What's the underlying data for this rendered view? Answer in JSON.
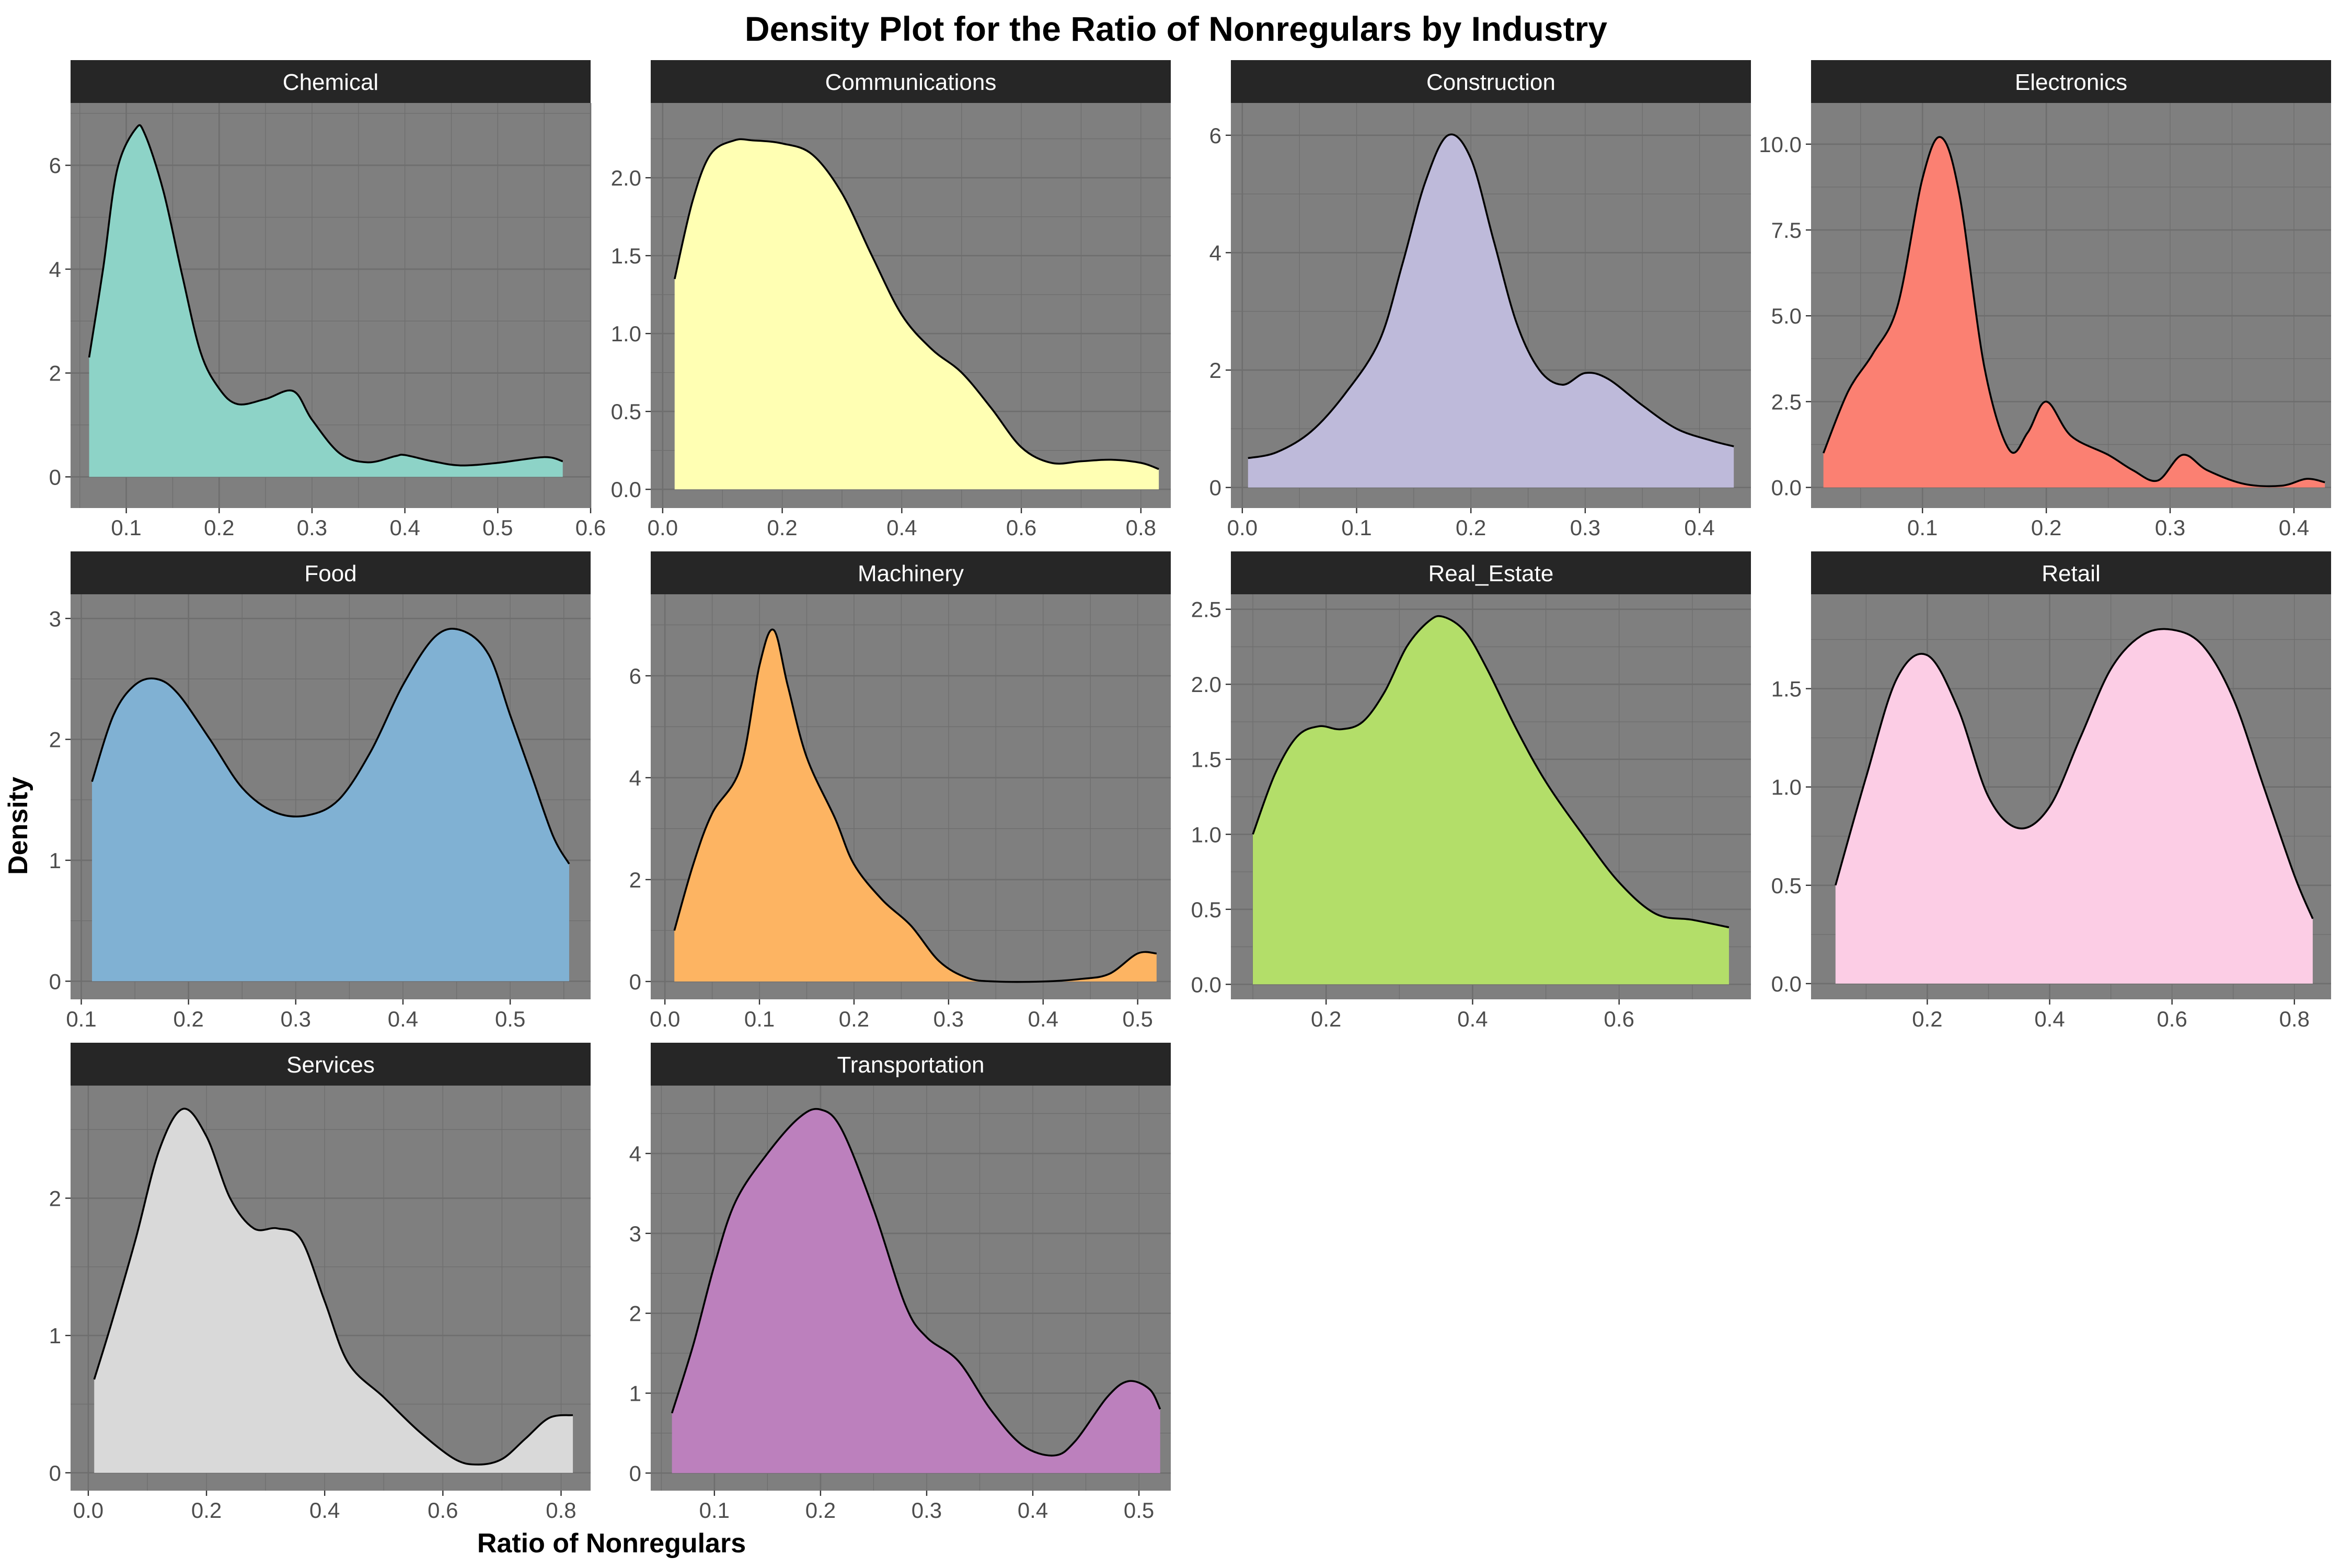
{
  "title": "Density Plot for the Ratio of Nonregulars by Industry",
  "x_axis_label": "Ratio of Nonregulars",
  "y_axis_label": "Density",
  "colors": {
    "panel_background": "#7f7f7f",
    "grid": "#6e6e6e",
    "strip_background": "#262626",
    "strip_text": "#ffffff",
    "outline": "#000000",
    "tick_text": "#4d4d4d"
  },
  "chart_data": [
    {
      "type": "area",
      "panel": "Chemical",
      "color": "#8dd3c7",
      "xlim": [
        0.04,
        0.6
      ],
      "ylim": [
        -0.6,
        7.2
      ],
      "x_ticks": [
        0.1,
        0.2,
        0.3,
        0.4,
        0.5,
        0.6
      ],
      "x_tick_labels": [
        "0.1",
        "0.2",
        "0.3",
        "0.4",
        "0.5",
        "0.6"
      ],
      "y_ticks": [
        0,
        2,
        4,
        6
      ],
      "y_tick_labels": [
        "0",
        "2",
        "4",
        "6"
      ],
      "x": [
        0.06,
        0.075,
        0.09,
        0.11,
        0.12,
        0.14,
        0.16,
        0.18,
        0.2,
        0.22,
        0.25,
        0.28,
        0.3,
        0.33,
        0.36,
        0.39,
        0.4,
        0.43,
        0.46,
        0.5,
        0.55,
        0.57
      ],
      "y": [
        2.3,
        4.0,
        5.9,
        6.7,
        6.6,
        5.5,
        3.9,
        2.4,
        1.7,
        1.4,
        1.5,
        1.65,
        1.1,
        0.45,
        0.28,
        0.4,
        0.42,
        0.3,
        0.22,
        0.27,
        0.38,
        0.3
      ]
    },
    {
      "type": "area",
      "panel": "Communications",
      "color": "#ffffb3",
      "xlim": [
        -0.02,
        0.85
      ],
      "ylim": [
        -0.12,
        2.48
      ],
      "x_ticks": [
        0.0,
        0.2,
        0.4,
        0.6,
        0.8
      ],
      "x_tick_labels": [
        "0.0",
        "0.2",
        "0.4",
        "0.6",
        "0.8"
      ],
      "y_ticks": [
        0.0,
        0.5,
        1.0,
        1.5,
        2.0
      ],
      "y_tick_labels": [
        "0.0",
        "0.5",
        "1.0",
        "1.5",
        "2.0"
      ],
      "x": [
        0.02,
        0.05,
        0.08,
        0.12,
        0.15,
        0.2,
        0.25,
        0.3,
        0.35,
        0.4,
        0.45,
        0.5,
        0.55,
        0.6,
        0.65,
        0.7,
        0.75,
        0.8,
        0.83
      ],
      "y": [
        1.35,
        1.85,
        2.15,
        2.24,
        2.24,
        2.22,
        2.15,
        1.9,
        1.5,
        1.12,
        0.9,
        0.75,
        0.52,
        0.27,
        0.17,
        0.18,
        0.19,
        0.17,
        0.13
      ]
    },
    {
      "type": "area",
      "panel": "Construction",
      "color": "#bebada",
      "xlim": [
        -0.01,
        0.445
      ],
      "ylim": [
        -0.35,
        6.55
      ],
      "x_ticks": [
        0.0,
        0.1,
        0.2,
        0.3,
        0.4
      ],
      "x_tick_labels": [
        "0.0",
        "0.1",
        "0.2",
        "0.3",
        "0.4"
      ],
      "y_ticks": [
        0,
        2,
        4,
        6
      ],
      "y_tick_labels": [
        "0",
        "2",
        "4",
        "6"
      ],
      "x": [
        0.005,
        0.03,
        0.06,
        0.09,
        0.12,
        0.14,
        0.16,
        0.18,
        0.2,
        0.22,
        0.24,
        0.26,
        0.28,
        0.3,
        0.32,
        0.35,
        0.38,
        0.41,
        0.43
      ],
      "y": [
        0.5,
        0.6,
        0.95,
        1.6,
        2.5,
        3.8,
        5.2,
        6.0,
        5.6,
        4.2,
        2.8,
        2.0,
        1.75,
        1.95,
        1.85,
        1.4,
        1.0,
        0.8,
        0.7
      ]
    },
    {
      "type": "area",
      "panel": "Electronics",
      "color": "#fb8072",
      "xlim": [
        0.01,
        0.43
      ],
      "ylim": [
        -0.6,
        11.2
      ],
      "x_ticks": [
        0.1,
        0.2,
        0.3,
        0.4
      ],
      "x_tick_labels": [
        "0.1",
        "0.2",
        "0.3",
        "0.4"
      ],
      "y_ticks": [
        0.0,
        2.5,
        5.0,
        7.5,
        10.0
      ],
      "y_tick_labels": [
        "0.0",
        "2.5",
        "5.0",
        "7.5",
        "10.0"
      ],
      "x": [
        0.02,
        0.04,
        0.06,
        0.08,
        0.1,
        0.115,
        0.13,
        0.15,
        0.17,
        0.185,
        0.2,
        0.22,
        0.25,
        0.27,
        0.29,
        0.31,
        0.33,
        0.36,
        0.39,
        0.41,
        0.425
      ],
      "y": [
        1.0,
        2.8,
        3.9,
        5.3,
        9.0,
        10.2,
        8.5,
        3.5,
        1.1,
        1.6,
        2.5,
        1.5,
        0.95,
        0.5,
        0.2,
        0.95,
        0.5,
        0.1,
        0.05,
        0.25,
        0.15
      ]
    },
    {
      "type": "area",
      "panel": "Food",
      "color": "#80b1d3",
      "xlim": [
        0.09,
        0.575
      ],
      "ylim": [
        -0.15,
        3.2
      ],
      "x_ticks": [
        0.1,
        0.2,
        0.3,
        0.4,
        0.5
      ],
      "x_tick_labels": [
        "0.1",
        "0.2",
        "0.3",
        "0.4",
        "0.5"
      ],
      "y_ticks": [
        0,
        1,
        2,
        3
      ],
      "y_tick_labels": [
        "0",
        "1",
        "2",
        "3"
      ],
      "x": [
        0.11,
        0.13,
        0.15,
        0.17,
        0.19,
        0.22,
        0.25,
        0.28,
        0.31,
        0.34,
        0.37,
        0.4,
        0.43,
        0.455,
        0.48,
        0.5,
        0.52,
        0.54,
        0.555
      ],
      "y": [
        1.65,
        2.2,
        2.45,
        2.5,
        2.38,
        2.0,
        1.6,
        1.4,
        1.37,
        1.5,
        1.9,
        2.45,
        2.85,
        2.9,
        2.7,
        2.2,
        1.7,
        1.2,
        0.97
      ]
    },
    {
      "type": "area",
      "panel": "Machinery",
      "color": "#fdb462",
      "xlim": [
        -0.015,
        0.535
      ],
      "ylim": [
        -0.35,
        7.6
      ],
      "x_ticks": [
        0.0,
        0.1,
        0.2,
        0.3,
        0.4,
        0.5
      ],
      "x_tick_labels": [
        "0.0",
        "0.1",
        "0.2",
        "0.3",
        "0.4",
        "0.5"
      ],
      "y_ticks": [
        0,
        2,
        4,
        6
      ],
      "y_tick_labels": [
        "0",
        "2",
        "4",
        "6"
      ],
      "x": [
        0.01,
        0.03,
        0.05,
        0.08,
        0.1,
        0.115,
        0.13,
        0.15,
        0.18,
        0.2,
        0.23,
        0.26,
        0.29,
        0.32,
        0.35,
        0.4,
        0.44,
        0.47,
        0.5,
        0.52
      ],
      "y": [
        1.0,
        2.3,
        3.3,
        4.2,
        6.2,
        6.9,
        5.8,
        4.4,
        3.2,
        2.3,
        1.6,
        1.1,
        0.4,
        0.07,
        0.0,
        0.0,
        0.05,
        0.15,
        0.55,
        0.55
      ]
    },
    {
      "type": "area",
      "panel": "Real_Estate",
      "color": "#b3de69",
      "xlim": [
        0.07,
        0.78
      ],
      "ylim": [
        -0.1,
        2.6
      ],
      "x_ticks": [
        0.2,
        0.4,
        0.6
      ],
      "x_tick_labels": [
        "0.2",
        "0.4",
        "0.6"
      ],
      "y_ticks": [
        0.0,
        0.5,
        1.0,
        1.5,
        2.0,
        2.5
      ],
      "y_tick_labels": [
        "0.0",
        "0.5",
        "1.0",
        "1.5",
        "2.0",
        "2.5"
      ],
      "x": [
        0.1,
        0.13,
        0.16,
        0.19,
        0.22,
        0.25,
        0.28,
        0.31,
        0.34,
        0.36,
        0.39,
        0.42,
        0.46,
        0.5,
        0.55,
        0.6,
        0.65,
        0.7,
        0.75
      ],
      "y": [
        1.0,
        1.4,
        1.65,
        1.72,
        1.7,
        1.75,
        1.95,
        2.25,
        2.42,
        2.45,
        2.35,
        2.1,
        1.7,
        1.35,
        1.0,
        0.68,
        0.47,
        0.43,
        0.38
      ]
    },
    {
      "type": "area",
      "panel": "Retail",
      "color": "#fccde5",
      "xlim": [
        0.01,
        0.86
      ],
      "ylim": [
        -0.08,
        1.98
      ],
      "x_ticks": [
        0.2,
        0.4,
        0.6,
        0.8
      ],
      "x_tick_labels": [
        "0.2",
        "0.4",
        "0.6",
        "0.8"
      ],
      "y_ticks": [
        0.0,
        0.5,
        1.0,
        1.5
      ],
      "y_tick_labels": [
        "0.0",
        "0.5",
        "1.0",
        "1.5"
      ],
      "x": [
        0.05,
        0.1,
        0.15,
        0.2,
        0.25,
        0.3,
        0.35,
        0.4,
        0.45,
        0.5,
        0.55,
        0.6,
        0.65,
        0.7,
        0.75,
        0.8,
        0.83
      ],
      "y": [
        0.5,
        1.05,
        1.55,
        1.67,
        1.4,
        0.95,
        0.79,
        0.9,
        1.25,
        1.6,
        1.77,
        1.8,
        1.72,
        1.45,
        1.0,
        0.55,
        0.33
      ]
    },
    {
      "type": "area",
      "panel": "Services",
      "color": "#d9d9d9",
      "xlim": [
        -0.03,
        0.85
      ],
      "ylim": [
        -0.13,
        2.82
      ],
      "x_ticks": [
        0.0,
        0.2,
        0.4,
        0.6,
        0.8
      ],
      "x_tick_labels": [
        "0.0",
        "0.2",
        "0.4",
        "0.6",
        "0.8"
      ],
      "y_ticks": [
        0,
        1,
        2
      ],
      "y_tick_labels": [
        "0",
        "1",
        "2"
      ],
      "x": [
        0.01,
        0.04,
        0.08,
        0.12,
        0.16,
        0.2,
        0.24,
        0.28,
        0.32,
        0.36,
        0.4,
        0.44,
        0.5,
        0.56,
        0.62,
        0.66,
        0.7,
        0.74,
        0.78,
        0.82
      ],
      "y": [
        0.68,
        1.1,
        1.7,
        2.35,
        2.65,
        2.45,
        2.0,
        1.78,
        1.78,
        1.7,
        1.25,
        0.8,
        0.55,
        0.3,
        0.1,
        0.06,
        0.1,
        0.25,
        0.4,
        0.42
      ]
    },
    {
      "type": "area",
      "panel": "Transportation",
      "color": "#bc80bd",
      "xlim": [
        0.04,
        0.53
      ],
      "ylim": [
        -0.22,
        4.85
      ],
      "x_ticks": [
        0.1,
        0.2,
        0.3,
        0.4,
        0.5
      ],
      "x_tick_labels": [
        "0.1",
        "0.2",
        "0.3",
        "0.4",
        "0.5"
      ],
      "y_ticks": [
        0,
        1,
        2,
        3,
        4
      ],
      "y_tick_labels": [
        "0",
        "1",
        "2",
        "3",
        "4"
      ],
      "x": [
        0.06,
        0.08,
        0.1,
        0.12,
        0.15,
        0.18,
        0.2,
        0.22,
        0.25,
        0.28,
        0.3,
        0.33,
        0.36,
        0.39,
        0.42,
        0.44,
        0.47,
        0.49,
        0.51,
        0.52
      ],
      "y": [
        0.75,
        1.6,
        2.6,
        3.4,
        4.0,
        4.45,
        4.55,
        4.3,
        3.3,
        2.1,
        1.7,
        1.4,
        0.8,
        0.35,
        0.22,
        0.4,
        0.95,
        1.15,
        1.05,
        0.8
      ]
    }
  ]
}
